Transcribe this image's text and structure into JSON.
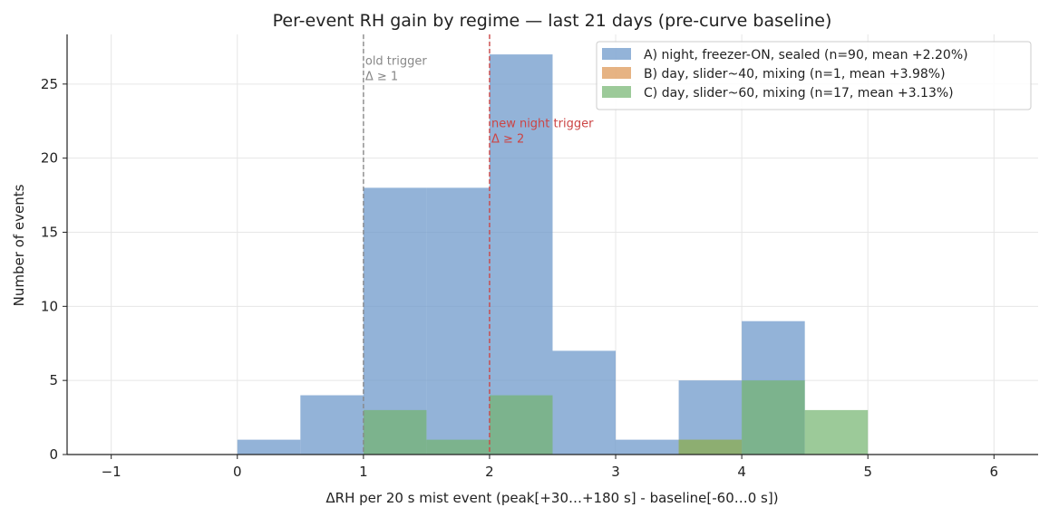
{
  "chart_data": {
    "type": "bar",
    "title": "Per-event RH gain by regime — last 21 days (pre-curve baseline)",
    "xlabel": "ΔRH per 20 s mist event (peak[+30…+180 s] - baseline[-60…0 s])",
    "ylabel": "Number of events",
    "xlim": [
      -1.35,
      6.35
    ],
    "ylim": [
      0,
      28.35
    ],
    "xticks": [
      -1,
      0,
      1,
      2,
      3,
      4,
      5,
      6
    ],
    "yticks": [
      0,
      5,
      10,
      15,
      20,
      25
    ],
    "grid": true,
    "legend_position": "top-right",
    "bin_edges": [
      0,
      0.5,
      1,
      1.5,
      2,
      2.5,
      3,
      3.5,
      4,
      4.5,
      5
    ],
    "series": [
      {
        "name": "A) night, freezer-ON, sealed  (n=90, mean +2.20%)",
        "color": "#6f9acb",
        "opacity": 0.75,
        "counts": [
          1,
          4,
          18,
          18,
          27,
          7,
          1,
          5,
          9,
          0
        ]
      },
      {
        "name": "B) day, slider~40, mixing  (n=1, mean +3.98%)",
        "color": "#dd9a5a",
        "opacity": 0.75,
        "counts": [
          0,
          0,
          0,
          0,
          0,
          0,
          0,
          1,
          0,
          0
        ]
      },
      {
        "name": "C) day, slider~60, mixing  (n=17, mean +3.13%)",
        "color": "#72b36e",
        "opacity": 0.7,
        "counts": [
          0,
          0,
          3,
          1,
          4,
          0,
          0,
          1,
          5,
          3
        ]
      }
    ],
    "vlines": [
      {
        "x": 1,
        "color": "#888888",
        "style": "dashed",
        "label_line1": "old trigger",
        "label_line2": "Δ ≥ 1",
        "label_y": 26.3
      },
      {
        "x": 2,
        "color": "#cc4444",
        "style": "dashed",
        "label_line1": "new night trigger",
        "label_line2": "Δ ≥ 2",
        "label_y": 22.1
      }
    ]
  }
}
